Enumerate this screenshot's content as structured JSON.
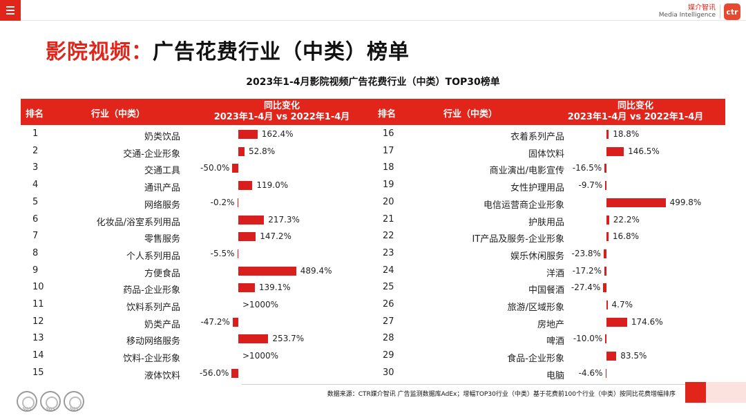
{
  "app": {
    "brand_cn": "媒介智讯",
    "brand_en": "Media Intelligence",
    "brand_mark": "ctr"
  },
  "page": {
    "title_prefix": "影院视频：",
    "title_main": "广告花费行业（中类）榜单"
  },
  "chart_data": {
    "type": "bar",
    "title": "2023年1-4月影院视频广告花费行业（中类）TOP30榜单",
    "columns": {
      "rank": "排名",
      "industry": "行业（中类）",
      "change_line1": "同比变化",
      "change_line2": "2023年1-4月 vs 2022年1-4月"
    },
    "unit": "%",
    "left": [
      {
        "rank": "1",
        "name": "奶类饮品",
        "value": 162.4,
        "label": "162.4%"
      },
      {
        "rank": "2",
        "name": "交通-企业形象",
        "value": 52.8,
        "label": "52.8%"
      },
      {
        "rank": "3",
        "name": "交通工具",
        "value": -50.0,
        "label": "-50.0%"
      },
      {
        "rank": "4",
        "name": "通讯产品",
        "value": 119.0,
        "label": "119.0%"
      },
      {
        "rank": "5",
        "name": "网络服务",
        "value": -0.2,
        "label": "-0.2%"
      },
      {
        "rank": "6",
        "name": "化妆品/浴室系列用品",
        "value": 217.3,
        "label": "217.3%"
      },
      {
        "rank": "7",
        "name": "零售服务",
        "value": 147.2,
        "label": "147.2%"
      },
      {
        "rank": "8",
        "name": "个人系列用品",
        "value": -5.5,
        "label": "-5.5%"
      },
      {
        "rank": "9",
        "name": "方便食品",
        "value": 489.4,
        "label": "489.4%"
      },
      {
        "rank": "10",
        "name": "药品-企业形象",
        "value": 139.1,
        "label": "139.1%"
      },
      {
        "rank": "11",
        "name": "饮料系列产品",
        "value": null,
        "label": ">1000%"
      },
      {
        "rank": "12",
        "name": "奶类产品",
        "value": -47.2,
        "label": "-47.2%"
      },
      {
        "rank": "13",
        "name": "移动网络服务",
        "value": 253.7,
        "label": "253.7%"
      },
      {
        "rank": "14",
        "name": "饮料-企业形象",
        "value": null,
        "label": ">1000%"
      },
      {
        "rank": "15",
        "name": "液体饮料",
        "value": -56.0,
        "label": "-56.0%"
      }
    ],
    "right": [
      {
        "rank": "16",
        "name": "衣着系列产品",
        "value": 18.8,
        "label": "18.8%"
      },
      {
        "rank": "17",
        "name": "固体饮料",
        "value": 146.5,
        "label": "146.5%"
      },
      {
        "rank": "18",
        "name": "商业演出/电影宣传",
        "value": -16.5,
        "label": "-16.5%"
      },
      {
        "rank": "19",
        "name": "女性护理用品",
        "value": -9.7,
        "label": "-9.7%"
      },
      {
        "rank": "20",
        "name": "电信运营商企业形象",
        "value": 499.8,
        "label": "499.8%"
      },
      {
        "rank": "21",
        "name": "护肤用品",
        "value": 22.2,
        "label": "22.2%"
      },
      {
        "rank": "22",
        "name": "IT产品及服务-企业形象",
        "value": 16.8,
        "label": "16.8%"
      },
      {
        "rank": "23",
        "name": "娱乐休闲服务",
        "value": -23.8,
        "label": "-23.8%"
      },
      {
        "rank": "24",
        "name": "洋酒",
        "value": -17.2,
        "label": "-17.2%"
      },
      {
        "rank": "25",
        "name": "中国餐酒",
        "value": -27.4,
        "label": "-27.4%"
      },
      {
        "rank": "26",
        "name": "旅游/区域形象",
        "value": 4.7,
        "label": "4.7%"
      },
      {
        "rank": "27",
        "name": "房地产",
        "value": 174.6,
        "label": "174.6%"
      },
      {
        "rank": "28",
        "name": "啤酒",
        "value": -10.0,
        "label": "-10.0%"
      },
      {
        "rank": "29",
        "name": "食品-企业形象",
        "value": 83.5,
        "label": "83.5%"
      },
      {
        "rank": "30",
        "name": "电脑",
        "value": -4.6,
        "label": "-4.6%"
      }
    ]
  },
  "footer": {
    "source": "数据来源：CTR媒介智讯 广告监测数据库AdEx；增幅TOP30行业（中类）基于花费前100个行业（中类）按同比花费增幅排序",
    "seal_label": "SGS"
  },
  "colors": {
    "accent": "#e1251b",
    "bar": "#d91e1e"
  }
}
